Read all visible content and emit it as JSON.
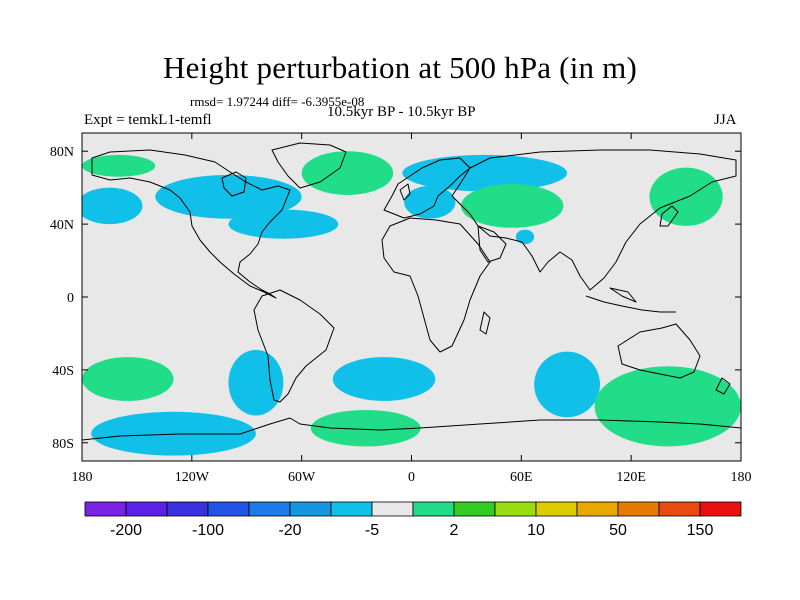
{
  "title": "Height perturbation at 500 hPa (in m)",
  "stats": "rmsd= 1.97244 diff= -6.3955e-08",
  "experiment": "Expt = temkL1-temfl",
  "period": "10.5kyr BP - 10.5kyr BP",
  "season": "JJA",
  "map": {
    "projection": "cylindrical equidistant",
    "lon_range": [
      -180,
      180
    ],
    "lat_range": [
      -90,
      90
    ],
    "x_ticks": [
      {
        "value": -180,
        "label": "180"
      },
      {
        "value": -120,
        "label": "120W"
      },
      {
        "value": -60,
        "label": "60W"
      },
      {
        "value": 0,
        "label": "0"
      },
      {
        "value": 60,
        "label": "60E"
      },
      {
        "value": 120,
        "label": "120E"
      },
      {
        "value": 180,
        "label": "180"
      }
    ],
    "y_ticks": [
      {
        "value": 80,
        "label": "80N"
      },
      {
        "value": 40,
        "label": "40N"
      },
      {
        "value": 0,
        "label": "0"
      },
      {
        "value": -40,
        "label": "40S"
      },
      {
        "value": -80,
        "label": "80S"
      }
    ],
    "background_color": "#e8e8e8",
    "coastline_color": "#000000",
    "anomaly_regions": [
      {
        "name": "n-atlantic-greenland-positive",
        "class": "2 to 5",
        "color": "#22dd88",
        "lon": -35,
        "lat": 68,
        "rlon": 25,
        "rlat": 12
      },
      {
        "name": "north-america-negative",
        "class": "-5 to -2",
        "color": "#11c0e8",
        "lon": -100,
        "lat": 55,
        "rlon": 40,
        "rlat": 12
      },
      {
        "name": "n-pacific-east-negative",
        "class": "-5 to -2",
        "color": "#11c0e8",
        "lon": -165,
        "lat": 50,
        "rlon": 18,
        "rlat": 10
      },
      {
        "name": "n-atlantic-negative",
        "class": "-5 to -2",
        "color": "#11c0e8",
        "lon": -70,
        "lat": 40,
        "rlon": 30,
        "rlat": 8
      },
      {
        "name": "arctic-positive-west",
        "class": "2 to 5",
        "color": "#22dd88",
        "lon": -160,
        "lat": 72,
        "rlon": 20,
        "rlat": 6
      },
      {
        "name": "scandinavia-siberia-negative",
        "class": "-5 to -2",
        "color": "#11c0e8",
        "lon": 40,
        "lat": 68,
        "rlon": 45,
        "rlat": 10
      },
      {
        "name": "central-asia-positive",
        "class": "2 to 10",
        "color": "#22dd88",
        "lon": 55,
        "lat": 50,
        "rlon": 28,
        "rlat": 12
      },
      {
        "name": "europe-negative",
        "class": "-5 to -2",
        "color": "#11c0e8",
        "lon": 10,
        "lat": 52,
        "rlon": 14,
        "rlat": 9
      },
      {
        "name": "n-pacific-west-positive",
        "class": "2 to 5",
        "color": "#22dd88",
        "lon": 150,
        "lat": 55,
        "rlon": 20,
        "rlat": 16
      },
      {
        "name": "arabia-negative",
        "class": "-5 to -2",
        "color": "#11c0e8",
        "lon": 62,
        "lat": 33,
        "rlon": 5,
        "rlat": 4
      },
      {
        "name": "s-pacific-positive",
        "class": "2 to 5",
        "color": "#22dd88",
        "lon": -155,
        "lat": -45,
        "rlon": 25,
        "rlat": 12
      },
      {
        "name": "south-america-negative",
        "class": "-5 to -2",
        "color": "#11c0e8",
        "lon": -85,
        "lat": -47,
        "rlon": 15,
        "rlat": 18
      },
      {
        "name": "s-atlantic-negative",
        "class": "-5 to -2",
        "color": "#11c0e8",
        "lon": -15,
        "lat": -45,
        "rlon": 28,
        "rlat": 12
      },
      {
        "name": "s-pacific-south-negative",
        "class": "-5 to -2",
        "color": "#11c0e8",
        "lon": -130,
        "lat": -75,
        "rlon": 45,
        "rlat": 12
      },
      {
        "name": "antarctic-atlantic-positive",
        "class": "2 to 5",
        "color": "#22dd88",
        "lon": -25,
        "lat": -72,
        "rlon": 30,
        "rlat": 10
      },
      {
        "name": "indian-ocean-negative",
        "class": "-5 to -2",
        "color": "#11c0e8",
        "lon": 85,
        "lat": -48,
        "rlon": 18,
        "rlat": 18
      },
      {
        "name": "australia-south-positive",
        "class": "2 to 10",
        "color": "#22dd88",
        "lon": 140,
        "lat": -60,
        "rlon": 40,
        "rlat": 22
      }
    ]
  },
  "colorbar": {
    "colors": [
      "#7a22e6",
      "#5a22e6",
      "#3a32e0",
      "#2255e6",
      "#1e7ae8",
      "#1496e0",
      "#11c0e8",
      "#e8e8e8",
      "#22dd88",
      "#33cc22",
      "#99dd11",
      "#ddcc00",
      "#e8a800",
      "#e87a00",
      "#e84a10",
      "#e81010"
    ],
    "labels": [
      "-200",
      "-100",
      "-20",
      "-5",
      "2",
      "10",
      "50",
      "150"
    ]
  }
}
